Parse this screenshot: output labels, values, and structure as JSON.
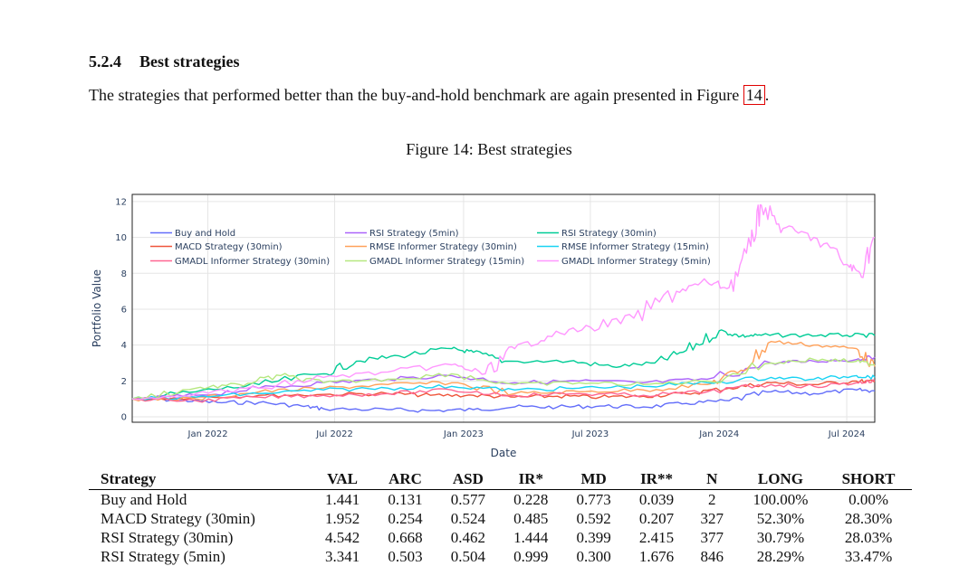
{
  "section": {
    "number": "5.2.4",
    "title": "Best strategies"
  },
  "paragraph": {
    "text": "The strategies that performed better than the buy-and-hold benchmark are again presented in Figure ",
    "ref": "14",
    "end": "."
  },
  "figure": {
    "caption": "Figure 14: Best strategies"
  },
  "chart_data": {
    "type": "line",
    "xlabel": "Date",
    "ylabel": "Portfolio Value",
    "xlim": [
      "2021-09-15",
      "2024-08-10"
    ],
    "ylim": [
      -0.3,
      12.4
    ],
    "x_ticks": [
      "Jan 2022",
      "Jul 2022",
      "Jan 2023",
      "Jul 2023",
      "Jan 2024",
      "Jul 2024"
    ],
    "y_ticks": [
      0,
      2,
      4,
      6,
      8,
      10,
      12
    ],
    "grid": true,
    "legend_position": "top-left inside",
    "series": [
      {
        "name": "Buy and Hold",
        "color": "#636efa",
        "x": [
          "2021-09-15",
          "2021-11-15",
          "2022-01-15",
          "2022-03-15",
          "2022-05-15",
          "2022-06-15",
          "2022-09-15",
          "2022-11-15",
          "2023-01-15",
          "2023-03-15",
          "2023-05-15",
          "2023-07-15",
          "2023-09-15",
          "2023-11-15",
          "2024-01-15",
          "2024-03-15",
          "2024-05-15",
          "2024-07-15",
          "2024-08-10"
        ],
        "y": [
          1.0,
          0.95,
          0.8,
          0.8,
          0.6,
          0.45,
          0.4,
          0.35,
          0.4,
          0.55,
          0.55,
          0.6,
          0.55,
          0.75,
          0.9,
          1.4,
          1.3,
          1.5,
          1.44
        ]
      },
      {
        "name": "MACD Strategy (30min)",
        "color": "#ef553b",
        "x": [
          "2021-09-15",
          "2021-12-15",
          "2022-03-15",
          "2022-06-15",
          "2022-09-15",
          "2022-11-15",
          "2023-01-15",
          "2023-03-15",
          "2023-05-15",
          "2023-07-15",
          "2023-09-15",
          "2023-11-15",
          "2024-01-15",
          "2024-03-15",
          "2024-05-15",
          "2024-07-15",
          "2024-08-10"
        ],
        "y": [
          1.0,
          1.1,
          1.2,
          1.25,
          1.3,
          1.2,
          1.2,
          1.1,
          1.15,
          1.1,
          1.15,
          1.3,
          1.6,
          1.9,
          1.8,
          2.0,
          1.95
        ]
      },
      {
        "name": "RSI Strategy (30min)",
        "color": "#00cc96",
        "x": [
          "2021-09-15",
          "2021-12-15",
          "2022-03-15",
          "2022-06-15",
          "2022-08-01",
          "2022-10-01",
          "2022-12-15",
          "2023-01-15",
          "2023-03-01",
          "2023-06-01",
          "2023-08-01",
          "2023-10-01",
          "2023-11-15",
          "2024-01-01",
          "2024-02-01",
          "2024-03-01",
          "2024-05-01",
          "2024-07-01",
          "2024-08-10"
        ],
        "y": [
          1.0,
          1.4,
          1.8,
          2.4,
          3.1,
          3.4,
          3.8,
          3.6,
          3.1,
          3.1,
          2.8,
          3.0,
          3.7,
          4.8,
          4.5,
          4.55,
          4.55,
          4.55,
          4.54
        ]
      },
      {
        "name": "RSI Strategy (5min)",
        "color": "#ab63fa",
        "x": [
          "2021-09-15",
          "2021-12-15",
          "2022-03-15",
          "2022-06-15",
          "2022-09-15",
          "2022-12-15",
          "2023-03-15",
          "2023-06-15",
          "2023-09-15",
          "2023-12-15",
          "2024-03-15",
          "2024-05-15",
          "2024-07-15",
          "2024-08-10"
        ],
        "y": [
          1.0,
          1.2,
          1.6,
          1.9,
          2.1,
          2.3,
          1.9,
          2.0,
          1.9,
          2.1,
          3.0,
          3.1,
          3.2,
          3.34
        ]
      },
      {
        "name": "RMSE Informer Strategy (30min)",
        "color": "#ffa15a",
        "x": [
          "2021-09-15",
          "2021-12-15",
          "2022-03-15",
          "2022-06-15",
          "2022-09-15",
          "2022-12-15",
          "2023-03-15",
          "2023-06-15",
          "2023-09-15",
          "2023-12-15",
          "2024-02-01",
          "2024-03-15",
          "2024-05-15",
          "2024-07-15",
          "2024-08-10"
        ],
        "y": [
          1.0,
          1.0,
          1.4,
          1.6,
          1.8,
          1.9,
          1.3,
          1.4,
          1.5,
          1.8,
          2.6,
          4.2,
          4.0,
          3.8,
          2.8
        ]
      },
      {
        "name": "RMSE Informer Strategy (15min)",
        "color": "#19d3f3",
        "x": [
          "2021-09-15",
          "2021-12-15",
          "2022-03-15",
          "2022-06-15",
          "2022-09-15",
          "2022-12-15",
          "2023-03-15",
          "2023-06-15",
          "2023-09-15",
          "2023-12-15",
          "2024-03-15",
          "2024-05-15",
          "2024-07-15",
          "2024-08-10"
        ],
        "y": [
          1.0,
          1.1,
          1.3,
          1.5,
          1.6,
          1.7,
          1.5,
          1.6,
          1.7,
          1.9,
          2.2,
          2.1,
          2.3,
          2.2
        ]
      },
      {
        "name": "GMADL Informer Strategy (30min)",
        "color": "#ff6692",
        "x": [
          "2021-09-15",
          "2021-12-15",
          "2022-03-15",
          "2022-06-15",
          "2022-09-15",
          "2022-12-15",
          "2023-03-15",
          "2023-06-15",
          "2023-09-15",
          "2023-12-15",
          "2024-03-15",
          "2024-05-15",
          "2024-07-15",
          "2024-08-10"
        ],
        "y": [
          1.0,
          0.9,
          1.1,
          1.2,
          1.3,
          1.5,
          1.2,
          1.3,
          1.2,
          1.4,
          1.8,
          1.7,
          1.9,
          2.0
        ]
      },
      {
        "name": "GMADL Informer Strategy (15min)",
        "color": "#b6e880",
        "x": [
          "2021-09-15",
          "2021-12-15",
          "2022-02-15",
          "2022-04-15",
          "2022-06-15",
          "2022-09-15",
          "2022-12-15",
          "2023-03-15",
          "2023-06-15",
          "2023-09-15",
          "2023-12-15",
          "2024-03-15",
          "2024-05-15",
          "2024-07-15",
          "2024-08-10"
        ],
        "y": [
          1.0,
          1.6,
          1.8,
          2.3,
          1.9,
          2.1,
          2.4,
          1.8,
          1.9,
          1.8,
          2.0,
          3.0,
          3.2,
          3.1,
          2.9
        ]
      },
      {
        "name": "GMADL Informer Strategy (5min)",
        "color": "#ff97ff",
        "x": [
          "2021-09-15",
          "2021-12-15",
          "2022-03-15",
          "2022-06-15",
          "2022-09-15",
          "2022-12-15",
          "2023-02-01",
          "2023-03-15",
          "2023-05-01",
          "2023-07-01",
          "2023-09-01",
          "2023-11-01",
          "2023-12-15",
          "2024-01-15",
          "2024-02-15",
          "2024-03-01",
          "2024-04-01",
          "2024-05-15",
          "2024-07-01",
          "2024-07-20",
          "2024-08-10"
        ],
        "y": [
          1.0,
          1.3,
          1.6,
          2.2,
          2.5,
          2.9,
          2.4,
          3.8,
          4.5,
          5.0,
          5.5,
          7.0,
          7.5,
          7.2,
          9.5,
          11.8,
          10.5,
          10.0,
          8.5,
          8.0,
          10.0
        ]
      }
    ]
  },
  "table": {
    "headers": [
      "Strategy",
      "VAL",
      "ARC",
      "ASD",
      "IR*",
      "MD",
      "IR**",
      "N",
      "LONG",
      "SHORT"
    ],
    "rows": [
      [
        "Buy and Hold",
        "1.441",
        "0.131",
        "0.577",
        "0.228",
        "0.773",
        "0.039",
        "2",
        "100.00%",
        "0.00%"
      ],
      [
        "MACD Strategy (30min)",
        "1.952",
        "0.254",
        "0.524",
        "0.485",
        "0.592",
        "0.207",
        "327",
        "52.30%",
        "28.30%"
      ],
      [
        "RSI Strategy (30min)",
        "4.542",
        "0.668",
        "0.462",
        "1.444",
        "0.399",
        "2.415",
        "377",
        "30.79%",
        "28.03%"
      ],
      [
        "RSI Strategy (5min)",
        "3.341",
        "0.503",
        "0.504",
        "0.999",
        "0.300",
        "1.676",
        "846",
        "28.29%",
        "33.47%"
      ]
    ]
  }
}
